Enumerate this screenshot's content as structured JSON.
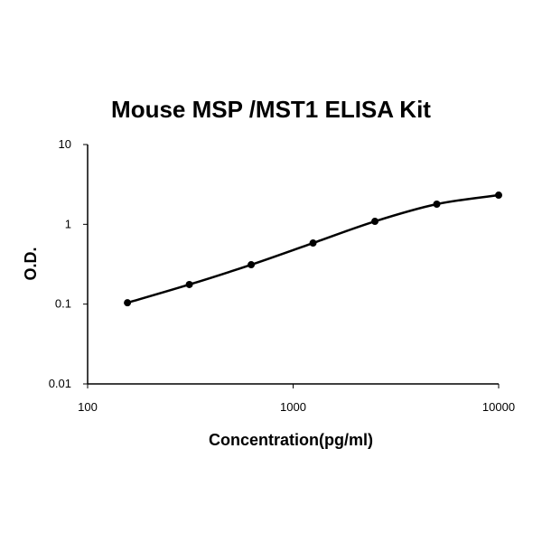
{
  "chart_data": {
    "type": "line",
    "title": "Mouse MSP /MST1 ELISA Kit",
    "x_label": "Concentration(pg/ml)",
    "y_label": "O.D.",
    "x": [
      156.25,
      312.5,
      625,
      1250,
      2500,
      5000,
      10000
    ],
    "values": [
      0.104,
      0.176,
      0.312,
      0.583,
      1.09,
      1.79,
      2.32
    ],
    "color": "#000000",
    "xscale": "log",
    "yscale": "log",
    "xlim": [
      100,
      10000
    ],
    "ylim": [
      0.01,
      10
    ],
    "xticks": [
      100,
      1000,
      10000
    ],
    "yticks": [
      0.01,
      0.1,
      1,
      10
    ]
  }
}
